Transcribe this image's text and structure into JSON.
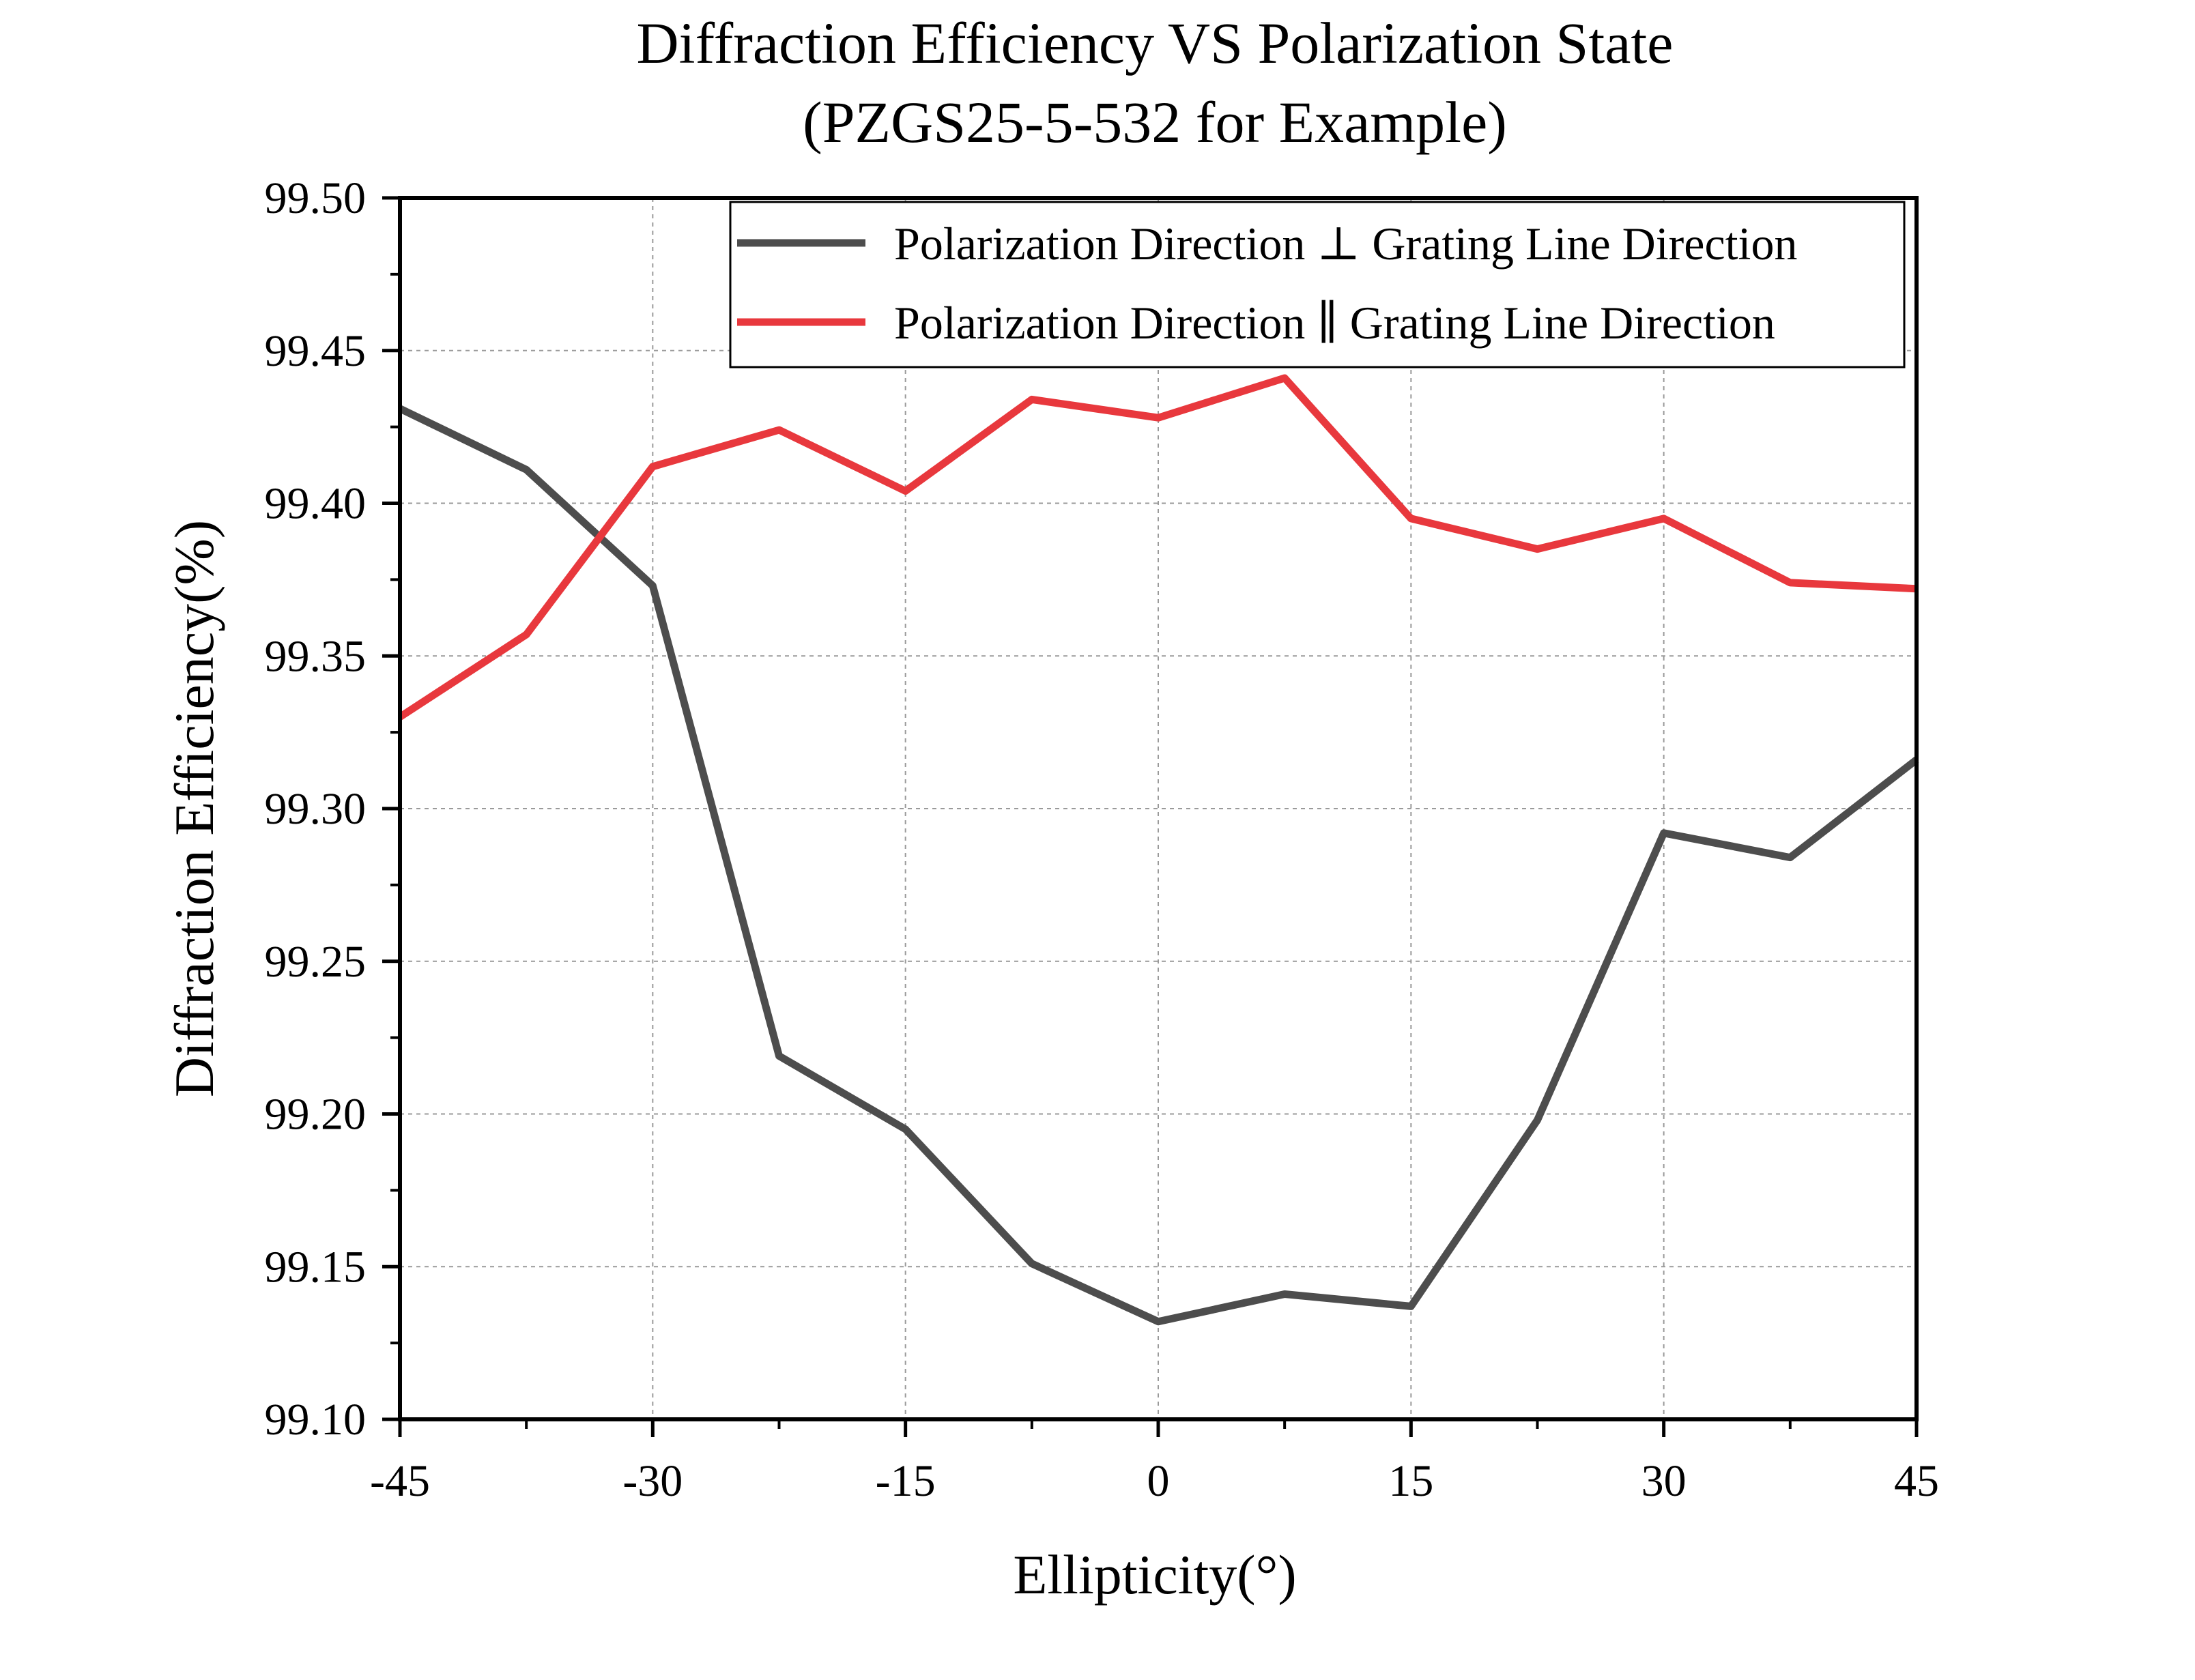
{
  "chart_data": {
    "type": "line",
    "title": "Diffraction Efficiency VS Polarization State",
    "subtitle": "(PZGS25-5-532 for Example)",
    "xlabel": "Ellipticity(°)",
    "ylabel": "Diffraction Efficiency(%)",
    "xlim": [
      -45,
      45
    ],
    "ylim": [
      99.1,
      99.5
    ],
    "xticks": [
      "-45",
      "-30",
      "-15",
      "0",
      "15",
      "30",
      "45"
    ],
    "yticks": [
      "99.10",
      "99.15",
      "99.20",
      "99.25",
      "99.30",
      "99.35",
      "99.40",
      "99.45",
      "99.50"
    ],
    "grid": true,
    "legend_position": "top-right",
    "x": [
      -45,
      -37.5,
      -30,
      -22.5,
      -15,
      -7.5,
      0,
      7.5,
      15,
      22.5,
      30,
      37.5,
      45
    ],
    "series": [
      {
        "name": "Polarization Direction ⊥ Grating Line Direction",
        "color": "#4d4d4d",
        "values": [
          99.431,
          99.411,
          99.373,
          99.219,
          99.195,
          99.151,
          99.132,
          99.141,
          99.137,
          99.198,
          99.292,
          99.284,
          99.316
        ]
      },
      {
        "name": "Polarization Direction ∥ Grating Line Direction",
        "color": "#e8383d",
        "values": [
          99.33,
          99.357,
          99.412,
          99.424,
          99.404,
          99.434,
          99.428,
          99.441,
          99.395,
          99.385,
          99.395,
          99.374,
          99.372
        ]
      }
    ]
  }
}
